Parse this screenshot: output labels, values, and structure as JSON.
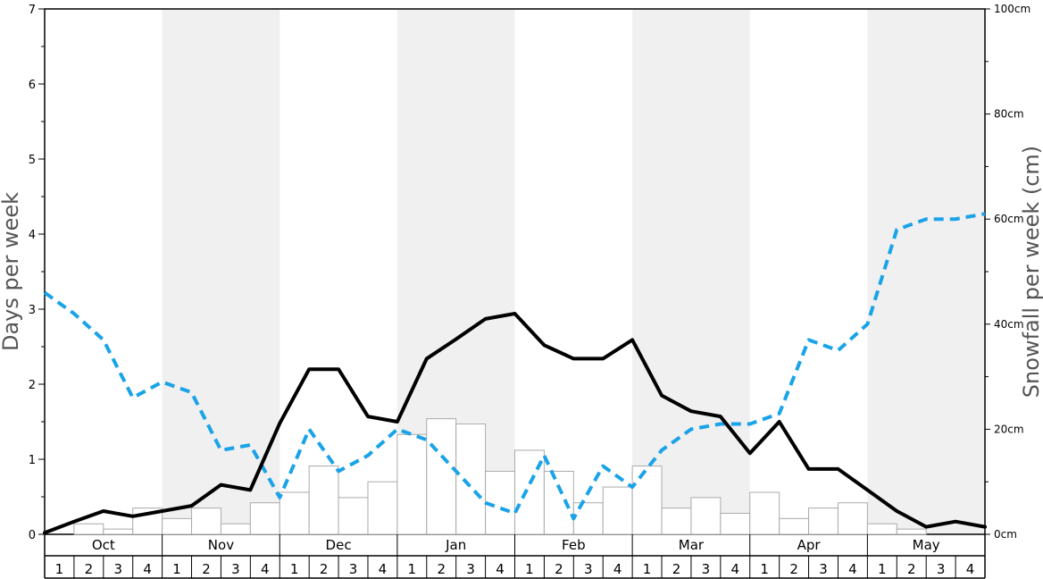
{
  "colors": {
    "band": "#f0f0f0",
    "bar_fill": "#ffffff",
    "bar_stroke": "#aaaaaa",
    "line_days": "#000000",
    "line_dashed": "#1aa3e8",
    "axis": "#000000"
  },
  "chart_data": {
    "type": "bar",
    "months": [
      "Oct",
      "Nov",
      "Dec",
      "Jan",
      "Feb",
      "Mar",
      "Apr",
      "May"
    ],
    "weeks": [
      "1",
      "2",
      "3",
      "4"
    ],
    "ylabel": "Days per week",
    "y2label": "Snowfall per week (cm)",
    "ylim": [
      0,
      7
    ],
    "y2lim": [
      0,
      100
    ],
    "yticks": [
      "0",
      "1",
      "2",
      "3",
      "4",
      "5",
      "6",
      "7"
    ],
    "y2ticks": [
      "0cm",
      "20cm",
      "40cm",
      "60cm",
      "80cm",
      "100cm"
    ],
    "series": [
      {
        "type": "bar",
        "axis": "right",
        "values": [
          0,
          2,
          1,
          5,
          3,
          5,
          2,
          6,
          8,
          13,
          7,
          10,
          19,
          22,
          21,
          12,
          16,
          12,
          6,
          9,
          13,
          5,
          7,
          4,
          8,
          3,
          5,
          6,
          2,
          1,
          0,
          0
        ]
      },
      {
        "type": "line",
        "axis": "left",
        "style": "solid",
        "values": [
          0.02,
          0.17,
          0.31,
          0.24,
          0.31,
          0.38,
          0.66,
          0.59,
          1.48,
          2.2,
          2.2,
          1.57,
          1.5,
          2.34,
          2.6,
          2.87,
          2.94,
          2.52,
          2.34,
          2.34,
          2.59,
          1.85,
          1.64,
          1.57,
          1.08,
          1.5,
          0.87,
          0.87,
          0.59,
          0.31,
          0.1,
          0.17,
          0.1
        ]
      },
      {
        "type": "line",
        "axis": "right",
        "style": "dashed",
        "values": [
          46,
          42,
          37,
          26,
          29,
          27,
          16,
          17,
          7,
          20,
          12,
          15,
          20,
          18,
          12,
          6,
          4,
          15,
          3,
          13,
          9,
          16,
          20,
          21,
          21,
          23,
          37,
          35,
          40,
          58,
          60,
          60,
          61
        ]
      }
    ]
  }
}
